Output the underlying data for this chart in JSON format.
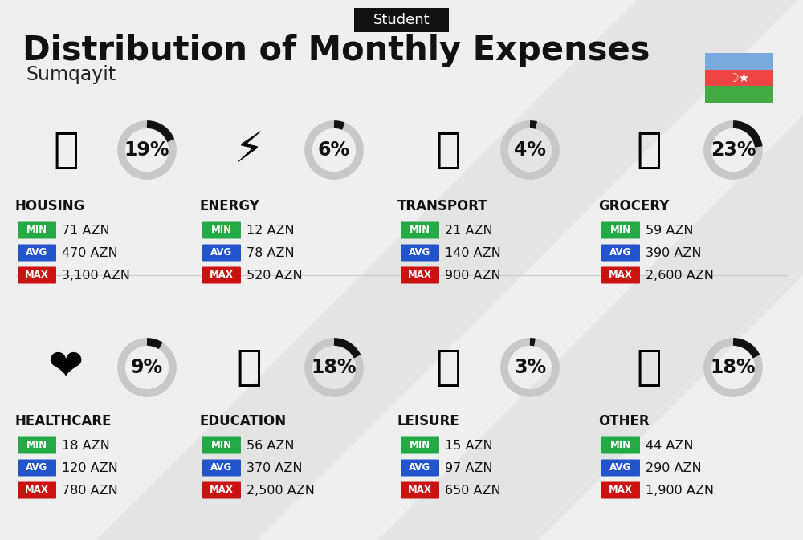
{
  "title": "Distribution of Monthly Expenses",
  "subtitle": "Sumqayit",
  "label_student": "Student",
  "bg_color": "#efefef",
  "categories": [
    {
      "name": "HOUSING",
      "pct": 19,
      "min": "71 AZN",
      "avg": "470 AZN",
      "max": "3,100 AZN",
      "icon": "🏙",
      "row": 0,
      "col": 0
    },
    {
      "name": "ENERGY",
      "pct": 6,
      "min": "12 AZN",
      "avg": "78 AZN",
      "max": "520 AZN",
      "icon": "⚡",
      "row": 0,
      "col": 1
    },
    {
      "name": "TRANSPORT",
      "pct": 4,
      "min": "21 AZN",
      "avg": "140 AZN",
      "max": "900 AZN",
      "icon": "🚌",
      "row": 0,
      "col": 2
    },
    {
      "name": "GROCERY",
      "pct": 23,
      "min": "59 AZN",
      "avg": "390 AZN",
      "max": "2,600 AZN",
      "icon": "🛒",
      "row": 0,
      "col": 3
    },
    {
      "name": "HEALTHCARE",
      "pct": 9,
      "min": "18 AZN",
      "avg": "120 AZN",
      "max": "780 AZN",
      "icon": "❤️",
      "row": 1,
      "col": 0
    },
    {
      "name": "EDUCATION",
      "pct": 18,
      "min": "56 AZN",
      "avg": "370 AZN",
      "max": "2,500 AZN",
      "icon": "🎓",
      "row": 1,
      "col": 1
    },
    {
      "name": "LEISURE",
      "pct": 3,
      "min": "15 AZN",
      "avg": "97 AZN",
      "max": "650 AZN",
      "icon": "🛍",
      "row": 1,
      "col": 2
    },
    {
      "name": "OTHER",
      "pct": 18,
      "min": "44 AZN",
      "avg": "290 AZN",
      "max": "1,900 AZN",
      "icon": "👛",
      "row": 1,
      "col": 3
    }
  ],
  "color_min": "#22aa44",
  "color_avg": "#2255cc",
  "color_max": "#cc1111",
  "color_ring_filled": "#111111",
  "color_ring_empty": "#c8c8c8",
  "title_fontsize": 30,
  "subtitle_fontsize": 17,
  "cat_fontsize": 12,
  "pct_fontsize": 17,
  "val_fontsize": 11,
  "stripe_color": "#e4e4e4",
  "flag_blue": "#78AADD",
  "flag_red": "#EE4444",
  "flag_green": "#44AA44"
}
